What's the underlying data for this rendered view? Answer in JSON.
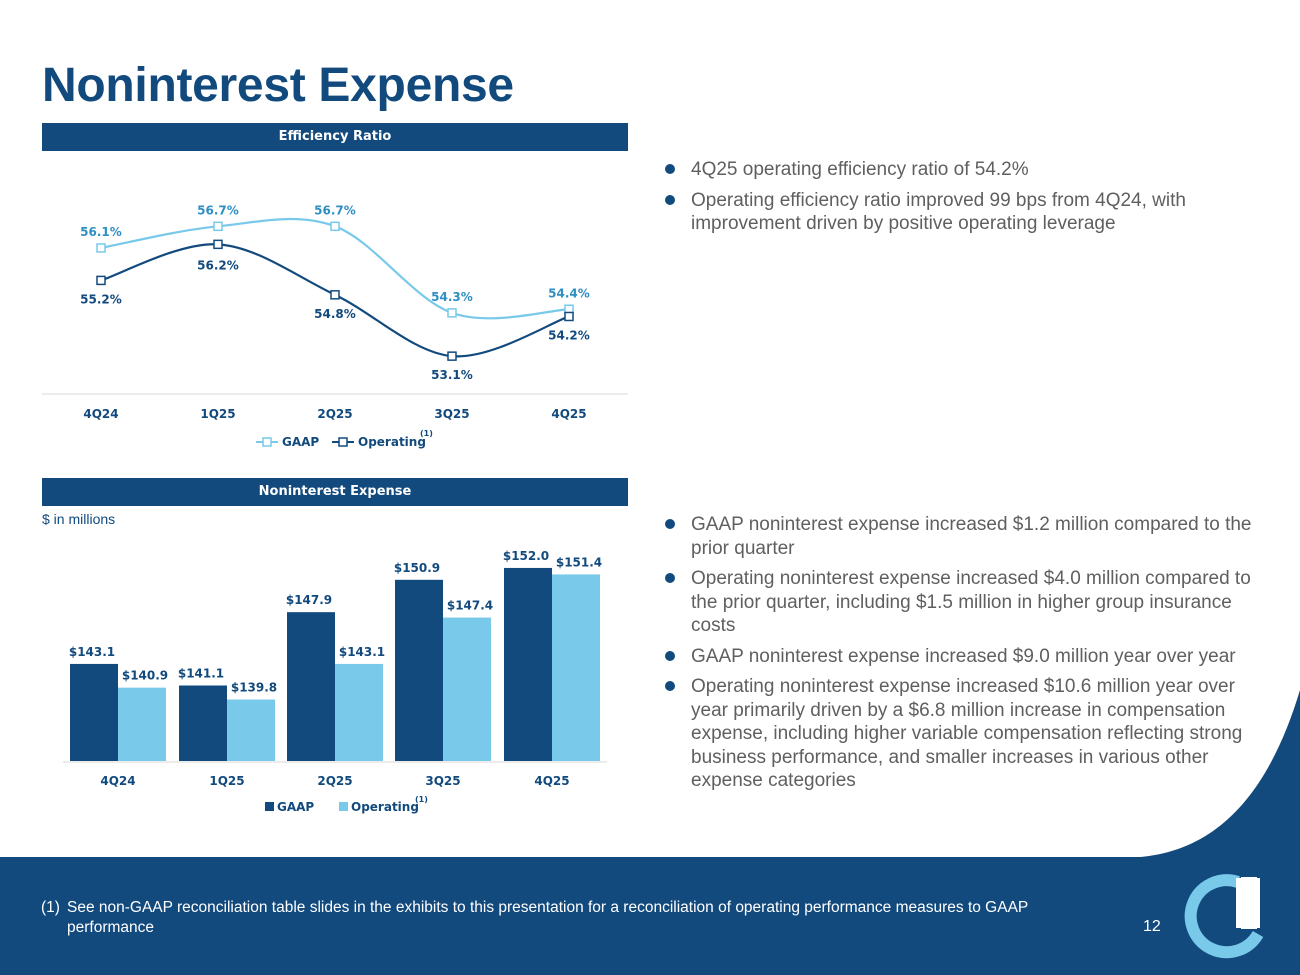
{
  "title": "Noninterest Expense",
  "colors": {
    "navy": "#124a7e",
    "light_blue": "#79c9ea",
    "bullet_text": "#5f5f5f",
    "axis_text": "#124a7e",
    "footer_bg": "#124a7e"
  },
  "icons": {
    "bullet": "circle-bullet-icon",
    "logo": "company-logo-icon"
  },
  "top_panel": {
    "header": "Efficiency Ratio"
  },
  "bottom_panel": {
    "header": "Noninterest Expense",
    "units_note": "$ in millions"
  },
  "chart_data": [
    {
      "type": "line",
      "title": "Efficiency Ratio",
      "categories": [
        "4Q24",
        "1Q25",
        "2Q25",
        "3Q25",
        "4Q25"
      ],
      "series": [
        {
          "name": "GAAP",
          "values": [
            56.1,
            56.7,
            56.7,
            54.3,
            54.4
          ],
          "labels": [
            "56.1%",
            "56.7%",
            "56.7%",
            "54.3%",
            "54.4%"
          ],
          "color": "#79c9ea",
          "marker": "hollow-square"
        },
        {
          "name": "Operating",
          "values": [
            55.2,
            56.2,
            54.8,
            53.1,
            54.2
          ],
          "labels": [
            "55.2%",
            "56.2%",
            "54.8%",
            "53.1%",
            "54.2%"
          ],
          "color": "#124a7e",
          "marker": "hollow-square"
        }
      ],
      "legend_footnote": "(1)",
      "legend_position": "bottom",
      "ylim": [
        52.3,
        58.4
      ]
    },
    {
      "type": "bar",
      "title": "Noninterest Expense",
      "ylabel": "$ in millions",
      "categories": [
        "4Q24",
        "1Q25",
        "2Q25",
        "3Q25",
        "4Q25"
      ],
      "series": [
        {
          "name": "GAAP",
          "values": [
            143.1,
            141.1,
            147.9,
            150.9,
            152.0
          ],
          "labels": [
            "$143.1",
            "$141.1",
            "$147.9",
            "$150.9",
            "$152.0"
          ],
          "color": "#124a7e"
        },
        {
          "name": "Operating",
          "values": [
            140.9,
            139.8,
            143.1,
            147.4,
            151.4
          ],
          "labels": [
            "$140.9",
            "$139.8",
            "$143.1",
            "$147.4",
            "$151.4"
          ],
          "color": "#79c9ea"
        }
      ],
      "legend_footnote": "(1)",
      "legend_position": "bottom",
      "ylim": [
        134.1,
        153.2
      ]
    }
  ],
  "bullets_top": [
    "4Q25 operating efficiency ratio of 54.2%",
    "Operating efficiency ratio improved 99 bps from 4Q24, with improvement driven by positive operating leverage"
  ],
  "bullets_bottom": [
    "GAAP noninterest expense increased $1.2 million compared to the prior quarter",
    "Operating noninterest expense increased $4.0 million compared to the prior quarter, including $1.5 million in higher group insurance costs",
    "GAAP noninterest expense increased $9.0 million year over year",
    "Operating noninterest expense increased $10.6 million year over year primarily driven by a $6.8 million increase in compensation expense, including higher variable compensation reflecting strong business performance, and smaller increases in various other expense categories"
  ],
  "footnote": {
    "marker": "(1)",
    "text": "See non-GAAP reconciliation table slides in the exhibits to this presentation for a reconciliation of operating performance measures to GAAP performance"
  },
  "page_number": "12"
}
